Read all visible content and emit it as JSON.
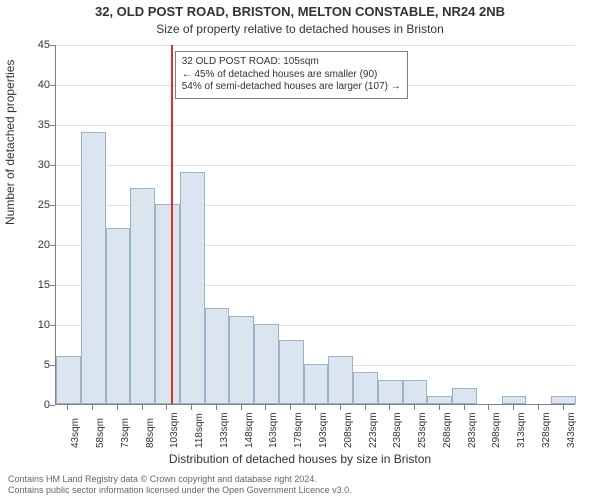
{
  "title_line1": "32, OLD POST ROAD, BRISTON, MELTON CONSTABLE, NR24 2NB",
  "title_line2": "Size of property relative to detached houses in Briston",
  "ylabel": "Number of detached properties",
  "xlabel": "Distribution of detached houses by size in Briston",
  "footer_line1": "Contains HM Land Registry data © Crown copyright and database right 2024.",
  "footer_line2": "Contains public sector information licensed under the Open Government Licence v3.0.",
  "infobox": {
    "line1": "32 OLD POST ROAD: 105sqm",
    "line2": "← 45% of detached houses are smaller (90)",
    "line3": "54% of semi-detached houses are larger (107) →"
  },
  "chart": {
    "type": "histogram",
    "ylim": [
      0,
      45
    ],
    "ytick_step": 5,
    "xticks": [
      43,
      58,
      73,
      88,
      103,
      118,
      133,
      148,
      163,
      178,
      193,
      208,
      223,
      238,
      253,
      268,
      283,
      298,
      313,
      328,
      343
    ],
    "xtick_suffix": "sqm",
    "bar_fill": "#dbe5ef",
    "bar_border": "#9cb2c6",
    "background": "#ffffff",
    "grid_color": "#e0e0e0",
    "axis_color": "#808080",
    "marker_line_color": "#d93030",
    "marker_x": 105,
    "bars": [
      {
        "x": 43,
        "count": 6
      },
      {
        "x": 58,
        "count": 34
      },
      {
        "x": 73,
        "count": 22
      },
      {
        "x": 88,
        "count": 27
      },
      {
        "x": 103,
        "count": 25
      },
      {
        "x": 118,
        "count": 29
      },
      {
        "x": 133,
        "count": 12
      },
      {
        "x": 148,
        "count": 11
      },
      {
        "x": 163,
        "count": 10
      },
      {
        "x": 178,
        "count": 8
      },
      {
        "x": 193,
        "count": 5
      },
      {
        "x": 208,
        "count": 6
      },
      {
        "x": 223,
        "count": 4
      },
      {
        "x": 238,
        "count": 3
      },
      {
        "x": 253,
        "count": 3
      },
      {
        "x": 268,
        "count": 1
      },
      {
        "x": 283,
        "count": 2
      },
      {
        "x": 298,
        "count": 0
      },
      {
        "x": 313,
        "count": 1
      },
      {
        "x": 328,
        "count": 0
      },
      {
        "x": 343,
        "count": 1
      }
    ],
    "bar_width_sqm": 15,
    "title_fontsize": 13,
    "subtitle_fontsize": 12,
    "label_fontsize": 12,
    "tick_fontsize": 11,
    "xtick_fontsize": 10
  }
}
